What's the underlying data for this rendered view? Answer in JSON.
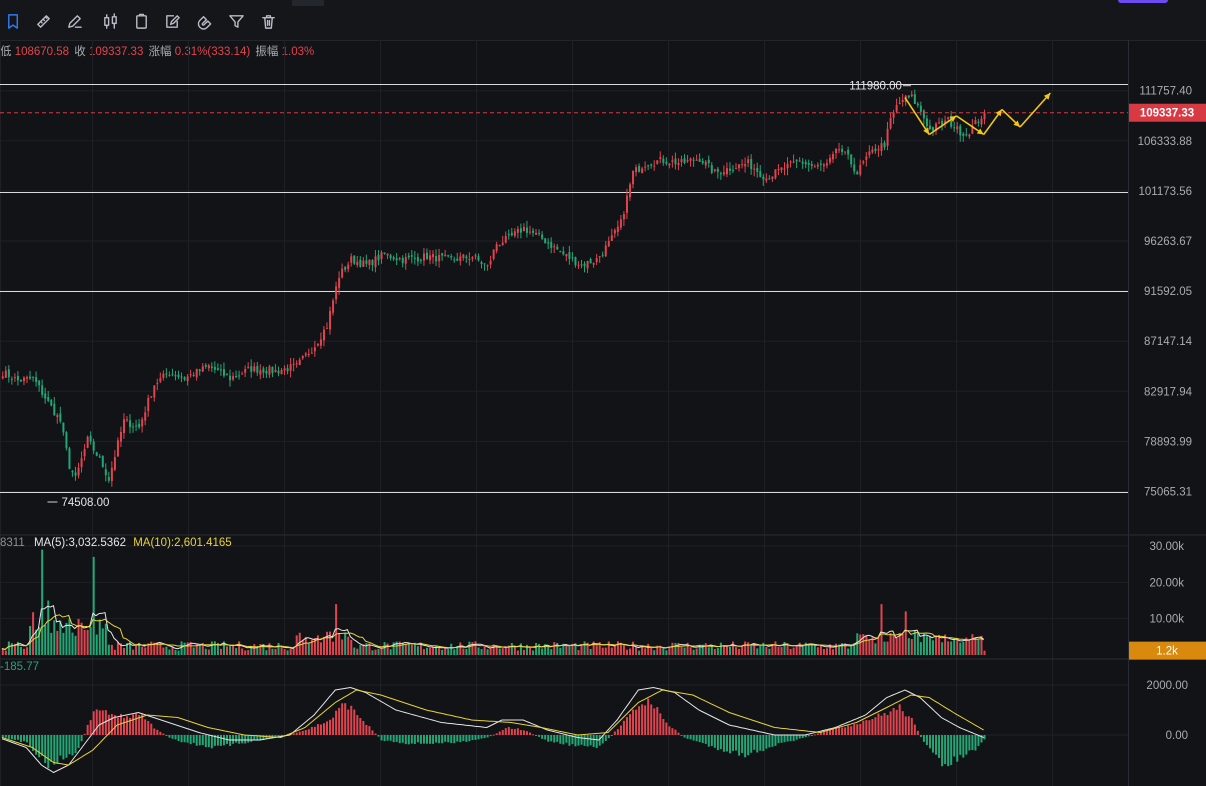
{
  "toolbar": {
    "tools": [
      {
        "name": "bookmark-tool",
        "active": true
      },
      {
        "name": "ruler-tool",
        "active": false
      },
      {
        "name": "draw-tool",
        "active": false
      },
      {
        "name": "candles-tool",
        "active": false
      },
      {
        "name": "clipboard-tool",
        "active": false
      },
      {
        "name": "edit-note-tool",
        "active": false
      },
      {
        "name": "magnet-tool",
        "active": false
      },
      {
        "name": "filter-tool",
        "active": false
      },
      {
        "name": "trash-tool",
        "active": false
      }
    ]
  },
  "ohlc": {
    "low_label": "低",
    "low_value": "108670.58",
    "close_label": "收",
    "close_value": "109337.33",
    "change_label": "涨幅",
    "change_value": "0.31%(333.14)",
    "amp_label": "振幅",
    "amp_value": "1.03%"
  },
  "volume_legend": {
    "prefix": "8311",
    "ma5_label": "MA(5):3,032.5362",
    "ma10_label": "MA(10):2,601.4165"
  },
  "macd_legend": {
    "value": "-185.77"
  },
  "colors": {
    "up": "#e0454f",
    "down": "#21a876",
    "ma_white": "#e6e6e6",
    "ma_yellow": "#e8d33a",
    "arrow": "#f5c518",
    "price_tag": "#d83a44",
    "volume_tag": "#d98a0e"
  },
  "chart_data": [
    {
      "type": "candlestick",
      "y_ticks": [
        "111757.40",
        "106333.88",
        "101173.56",
        "96263.67",
        "91592.05",
        "87147.14",
        "82917.94",
        "78893.99",
        "75065.31"
      ],
      "ylim": [
        72000,
        114000
      ],
      "grid": true,
      "current_price": "109337.33",
      "high_annotation": "111980.00",
      "low_annotation": "74508.00",
      "horizontal_levels": [
        112500,
        101100,
        91600,
        75065.31
      ],
      "anchors": [
        [
          0,
          84500
        ],
        [
          5,
          83800
        ],
        [
          10,
          84000
        ],
        [
          15,
          82000
        ],
        [
          19,
          80500
        ],
        [
          22,
          77000
        ],
        [
          24,
          76000
        ],
        [
          28,
          79000
        ],
        [
          32,
          77500
        ],
        [
          35,
          76000
        ],
        [
          40,
          80500
        ],
        [
          45,
          80000
        ],
        [
          50,
          83500
        ],
        [
          55,
          84500
        ],
        [
          60,
          84000
        ],
        [
          68,
          85000
        ],
        [
          75,
          84000
        ],
        [
          82,
          84800
        ],
        [
          90,
          84600
        ],
        [
          97,
          85000
        ],
        [
          103,
          86800
        ],
        [
          107,
          88500
        ],
        [
          111,
          93000
        ],
        [
          115,
          94500
        ],
        [
          120,
          94000
        ],
        [
          126,
          95000
        ],
        [
          132,
          94500
        ],
        [
          140,
          94800
        ],
        [
          148,
          94500
        ],
        [
          155,
          94800
        ],
        [
          160,
          93800
        ],
        [
          163,
          96000
        ],
        [
          167,
          96500
        ],
        [
          172,
          97500
        ],
        [
          178,
          96500
        ],
        [
          185,
          95000
        ],
        [
          191,
          94000
        ],
        [
          196,
          94500
        ],
        [
          200,
          96000
        ],
        [
          204,
          98000
        ],
        [
          208,
          103000
        ],
        [
          212,
          104000
        ],
        [
          218,
          104300
        ],
        [
          224,
          104000
        ],
        [
          230,
          104500
        ],
        [
          235,
          103000
        ],
        [
          240,
          103500
        ],
        [
          246,
          104000
        ],
        [
          252,
          102500
        ],
        [
          258,
          103500
        ],
        [
          263,
          104200
        ],
        [
          268,
          103600
        ],
        [
          272,
          103800
        ],
        [
          276,
          105500
        ],
        [
          279,
          104500
        ],
        [
          282,
          103000
        ],
        [
          285,
          104500
        ],
        [
          288,
          105500
        ],
        [
          291,
          106000
        ],
        [
          293,
          108500
        ],
        [
          295,
          110000
        ],
        [
          297,
          110800
        ],
        [
          300,
          111000
        ],
        [
          303,
          109500
        ],
        [
          306,
          107500
        ],
        [
          309,
          108000
        ],
        [
          312,
          108500
        ],
        [
          315,
          107500
        ],
        [
          318,
          107000
        ],
        [
          321,
          108200
        ],
        [
          324,
          109337
        ]
      ],
      "forecast_path": [
        [
          298,
          111000
        ],
        [
          306,
          107000
        ],
        [
          315,
          109000
        ],
        [
          324,
          107000
        ],
        [
          330,
          109700
        ],
        [
          336,
          107800
        ],
        [
          346,
          111500
        ]
      ]
    },
    {
      "type": "bar",
      "title": "Volume",
      "y_ticks": [
        "30.00k",
        "20.00k",
        "10.00k"
      ],
      "ylim": [
        0,
        34000
      ],
      "current_value": "1.2k",
      "spikes": [
        [
          13,
          29000
        ],
        [
          15,
          15000
        ],
        [
          30,
          27000
        ],
        [
          110,
          14000
        ],
        [
          290,
          14000
        ],
        [
          298,
          12000
        ]
      ]
    },
    {
      "type": "histogram",
      "title": "MACD",
      "y_ticks": [
        "2000.00",
        "0.00"
      ],
      "ylim": [
        -1600,
        2300
      ],
      "histogram": [
        [
          0,
          -100
        ],
        [
          8,
          -300
        ],
        [
          15,
          -1200
        ],
        [
          20,
          -900
        ],
        [
          25,
          -600
        ],
        [
          30,
          1000
        ],
        [
          35,
          900
        ],
        [
          40,
          700
        ],
        [
          45,
          900
        ],
        [
          50,
          300
        ],
        [
          55,
          -100
        ],
        [
          60,
          -300
        ],
        [
          70,
          -500
        ],
        [
          80,
          -300
        ],
        [
          90,
          -100
        ],
        [
          100,
          200
        ],
        [
          108,
          600
        ],
        [
          113,
          1300
        ],
        [
          118,
          700
        ],
        [
          125,
          -200
        ],
        [
          135,
          -350
        ],
        [
          150,
          -300
        ],
        [
          160,
          -100
        ],
        [
          167,
          300
        ],
        [
          172,
          200
        ],
        [
          180,
          -250
        ],
        [
          188,
          -400
        ],
        [
          197,
          -500
        ],
        [
          205,
          500
        ],
        [
          210,
          1200
        ],
        [
          214,
          1400
        ],
        [
          218,
          600
        ],
        [
          225,
          -100
        ],
        [
          235,
          -500
        ],
        [
          245,
          -800
        ],
        [
          255,
          -400
        ],
        [
          265,
          -100
        ],
        [
          272,
          200
        ],
        [
          280,
          400
        ],
        [
          290,
          800
        ],
        [
          296,
          1100
        ],
        [
          300,
          600
        ],
        [
          304,
          -300
        ],
        [
          310,
          -1200
        ],
        [
          316,
          -900
        ],
        [
          322,
          -500
        ],
        [
          324,
          -200
        ]
      ],
      "dif_line": [
        [
          0,
          -150
        ],
        [
          8,
          -500
        ],
        [
          13,
          -1200
        ],
        [
          17,
          -1500
        ],
        [
          22,
          -1200
        ],
        [
          27,
          -400
        ],
        [
          32,
          400
        ],
        [
          37,
          700
        ],
        [
          45,
          900
        ],
        [
          55,
          500
        ],
        [
          65,
          100
        ],
        [
          75,
          -200
        ],
        [
          85,
          -200
        ],
        [
          95,
          0
        ],
        [
          103,
          800
        ],
        [
          110,
          1800
        ],
        [
          115,
          1900
        ],
        [
          120,
          1700
        ],
        [
          130,
          1000
        ],
        [
          145,
          500
        ],
        [
          160,
          300
        ],
        [
          165,
          600
        ],
        [
          172,
          600
        ],
        [
          180,
          200
        ],
        [
          190,
          -100
        ],
        [
          197,
          -200
        ],
        [
          203,
          600
        ],
        [
          210,
          1800
        ],
        [
          215,
          1900
        ],
        [
          222,
          1700
        ],
        [
          230,
          1000
        ],
        [
          240,
          400
        ],
        [
          255,
          0
        ],
        [
          265,
          0
        ],
        [
          275,
          300
        ],
        [
          285,
          800
        ],
        [
          292,
          1500
        ],
        [
          298,
          1800
        ],
        [
          303,
          1500
        ],
        [
          310,
          700
        ],
        [
          316,
          300
        ],
        [
          324,
          -100
        ]
      ],
      "dea_line": [
        [
          0,
          -100
        ],
        [
          10,
          -500
        ],
        [
          17,
          -1100
        ],
        [
          22,
          -1200
        ],
        [
          30,
          -600
        ],
        [
          38,
          400
        ],
        [
          48,
          800
        ],
        [
          58,
          700
        ],
        [
          68,
          300
        ],
        [
          80,
          0
        ],
        [
          92,
          -100
        ],
        [
          100,
          300
        ],
        [
          110,
          1300
        ],
        [
          117,
          1800
        ],
        [
          125,
          1600
        ],
        [
          140,
          1000
        ],
        [
          155,
          600
        ],
        [
          168,
          500
        ],
        [
          178,
          300
        ],
        [
          190,
          0
        ],
        [
          200,
          100
        ],
        [
          210,
          1300
        ],
        [
          218,
          1800
        ],
        [
          228,
          1600
        ],
        [
          240,
          900
        ],
        [
          255,
          300
        ],
        [
          270,
          100
        ],
        [
          282,
          500
        ],
        [
          292,
          1100
        ],
        [
          300,
          1600
        ],
        [
          306,
          1500
        ],
        [
          314,
          900
        ],
        [
          324,
          200
        ]
      ]
    }
  ]
}
